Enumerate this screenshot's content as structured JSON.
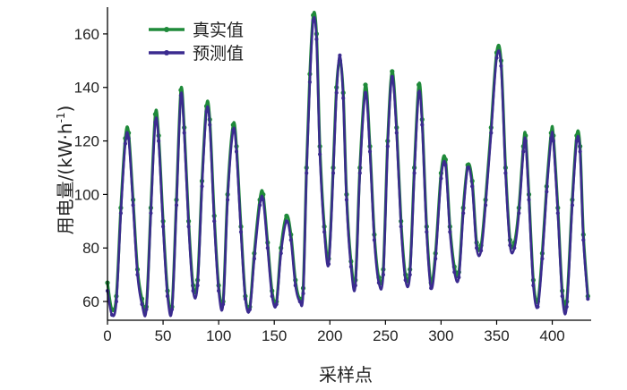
{
  "chart_data": {
    "type": "line",
    "xlabel": "采样点",
    "ylabel_main": "用电量/(kW·h",
    "ylabel_sup": "-1",
    "ylabel_close": ")",
    "xlim": [
      0,
      435
    ],
    "ylim": [
      53,
      170
    ],
    "xticks": [
      0,
      50,
      100,
      150,
      200,
      250,
      300,
      350,
      400
    ],
    "yticks": [
      60,
      80,
      100,
      120,
      140,
      160
    ],
    "legend_position": "top-left",
    "series": [
      {
        "name": "真实值",
        "color": "#1f8a3a",
        "keypoints": [
          [
            0,
            67
          ],
          [
            4,
            57
          ],
          [
            8,
            62
          ],
          [
            12,
            95
          ],
          [
            16,
            121
          ],
          [
            19,
            123
          ],
          [
            23,
            98
          ],
          [
            27,
            72
          ],
          [
            31,
            61
          ],
          [
            35,
            58
          ],
          [
            39,
            95
          ],
          [
            43,
            130
          ],
          [
            46,
            122
          ],
          [
            50,
            90
          ],
          [
            54,
            64
          ],
          [
            58,
            58
          ],
          [
            62,
            98
          ],
          [
            66,
            139
          ],
          [
            69,
            125
          ],
          [
            73,
            90
          ],
          [
            77,
            66
          ],
          [
            81,
            68
          ],
          [
            85,
            105
          ],
          [
            89,
            133
          ],
          [
            92,
            128
          ],
          [
            96,
            92
          ],
          [
            100,
            66
          ],
          [
            104,
            60
          ],
          [
            108,
            100
          ],
          [
            113,
            126
          ],
          [
            116,
            118
          ],
          [
            120,
            88
          ],
          [
            124,
            62
          ],
          [
            128,
            58
          ],
          [
            132,
            78
          ],
          [
            137,
            98
          ],
          [
            140,
            100
          ],
          [
            144,
            82
          ],
          [
            148,
            64
          ],
          [
            152,
            60
          ],
          [
            156,
            80
          ],
          [
            161,
            92
          ],
          [
            165,
            85
          ],
          [
            169,
            68
          ],
          [
            173,
            61
          ],
          [
            176,
            65
          ],
          [
            179,
            110
          ],
          [
            182,
            145
          ],
          [
            185,
            167
          ],
          [
            188,
            160
          ],
          [
            191,
            118
          ],
          [
            195,
            88
          ],
          [
            199,
            76
          ],
          [
            203,
            110
          ],
          [
            206,
            140
          ],
          [
            209,
            150
          ],
          [
            212,
            138
          ],
          [
            215,
            100
          ],
          [
            219,
            75
          ],
          [
            223,
            68
          ],
          [
            227,
            110
          ],
          [
            232,
            141
          ],
          [
            236,
            118
          ],
          [
            240,
            85
          ],
          [
            244,
            69
          ],
          [
            248,
            72
          ],
          [
            252,
            120
          ],
          [
            256,
            146
          ],
          [
            260,
            125
          ],
          [
            264,
            90
          ],
          [
            268,
            70
          ],
          [
            272,
            72
          ],
          [
            276,
            110
          ],
          [
            280,
            141
          ],
          [
            283,
            128
          ],
          [
            287,
            88
          ],
          [
            291,
            67
          ],
          [
            295,
            78
          ],
          [
            300,
            108
          ],
          [
            304,
            113
          ],
          [
            308,
            88
          ],
          [
            312,
            73
          ],
          [
            316,
            71
          ],
          [
            320,
            95
          ],
          [
            324,
            111
          ],
          [
            328,
            105
          ],
          [
            332,
            82
          ],
          [
            336,
            81
          ],
          [
            340,
            98
          ],
          [
            345,
            125
          ],
          [
            350,
            153
          ],
          [
            354,
            150
          ],
          [
            358,
            110
          ],
          [
            362,
            83
          ],
          [
            366,
            82
          ],
          [
            370,
            95
          ],
          [
            374,
            118
          ],
          [
            376,
            122
          ],
          [
            379,
            100
          ],
          [
            383,
            68
          ],
          [
            387,
            60
          ],
          [
            391,
            78
          ],
          [
            395,
            103
          ],
          [
            399,
            123
          ],
          [
            401,
            122
          ],
          [
            405,
            95
          ],
          [
            409,
            64
          ],
          [
            413,
            60
          ],
          [
            418,
            98
          ],
          [
            422,
            122
          ],
          [
            425,
            118
          ],
          [
            428,
            85
          ],
          [
            432,
            62
          ]
        ]
      },
      {
        "name": "预测值",
        "color": "#3b2b8f",
        "keypoints": [
          [
            0,
            64
          ],
          [
            4,
            55
          ],
          [
            8,
            60
          ],
          [
            12,
            93
          ],
          [
            16,
            119
          ],
          [
            19,
            121
          ],
          [
            23,
            96
          ],
          [
            27,
            70
          ],
          [
            31,
            59
          ],
          [
            35,
            57
          ],
          [
            39,
            93
          ],
          [
            43,
            127
          ],
          [
            46,
            120
          ],
          [
            50,
            88
          ],
          [
            54,
            62
          ],
          [
            58,
            57
          ],
          [
            62,
            96
          ],
          [
            66,
            137
          ],
          [
            69,
            123
          ],
          [
            73,
            88
          ],
          [
            77,
            64
          ],
          [
            81,
            66
          ],
          [
            85,
            103
          ],
          [
            89,
            131
          ],
          [
            92,
            126
          ],
          [
            96,
            90
          ],
          [
            100,
            64
          ],
          [
            104,
            59
          ],
          [
            108,
            98
          ],
          [
            113,
            124
          ],
          [
            116,
            116
          ],
          [
            120,
            86
          ],
          [
            124,
            61
          ],
          [
            128,
            57
          ],
          [
            132,
            76
          ],
          [
            137,
            96
          ],
          [
            140,
            98
          ],
          [
            144,
            80
          ],
          [
            148,
            62
          ],
          [
            152,
            59
          ],
          [
            156,
            78
          ],
          [
            161,
            90
          ],
          [
            165,
            83
          ],
          [
            169,
            66
          ],
          [
            173,
            60
          ],
          [
            176,
            63
          ],
          [
            179,
            108
          ],
          [
            182,
            142
          ],
          [
            185,
            165
          ],
          [
            188,
            158
          ],
          [
            191,
            115
          ],
          [
            195,
            86
          ],
          [
            199,
            74
          ],
          [
            203,
            108
          ],
          [
            206,
            138
          ],
          [
            209,
            152
          ],
          [
            212,
            136
          ],
          [
            215,
            98
          ],
          [
            219,
            73
          ],
          [
            223,
            66
          ],
          [
            227,
            108
          ],
          [
            232,
            138
          ],
          [
            236,
            116
          ],
          [
            240,
            83
          ],
          [
            244,
            67
          ],
          [
            248,
            70
          ],
          [
            252,
            118
          ],
          [
            256,
            144
          ],
          [
            260,
            123
          ],
          [
            264,
            88
          ],
          [
            268,
            68
          ],
          [
            272,
            70
          ],
          [
            276,
            108
          ],
          [
            280,
            138
          ],
          [
            283,
            126
          ],
          [
            287,
            86
          ],
          [
            291,
            65
          ],
          [
            295,
            76
          ],
          [
            300,
            106
          ],
          [
            304,
            111
          ],
          [
            308,
            86
          ],
          [
            312,
            71
          ],
          [
            316,
            69
          ],
          [
            320,
            93
          ],
          [
            324,
            110
          ],
          [
            328,
            103
          ],
          [
            332,
            80
          ],
          [
            336,
            79
          ],
          [
            340,
            96
          ],
          [
            345,
            123
          ],
          [
            350,
            151
          ],
          [
            354,
            148
          ],
          [
            358,
            108
          ],
          [
            362,
            81
          ],
          [
            366,
            80
          ],
          [
            370,
            93
          ],
          [
            374,
            116
          ],
          [
            376,
            120
          ],
          [
            379,
            98
          ],
          [
            383,
            66
          ],
          [
            387,
            58
          ],
          [
            391,
            76
          ],
          [
            395,
            101
          ],
          [
            399,
            121
          ],
          [
            401,
            120
          ],
          [
            405,
            93
          ],
          [
            409,
            62
          ],
          [
            413,
            58
          ],
          [
            418,
            96
          ],
          [
            422,
            120
          ],
          [
            425,
            116
          ],
          [
            428,
            83
          ],
          [
            432,
            61
          ]
        ]
      }
    ]
  }
}
